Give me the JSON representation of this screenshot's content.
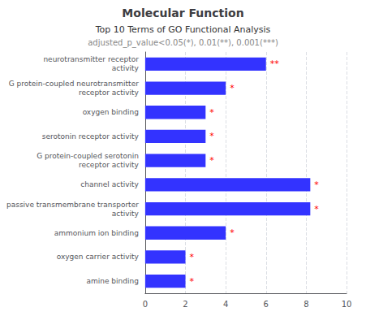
{
  "chart_data": {
    "type": "bar",
    "orientation": "horizontal",
    "title": "Molecular Function",
    "subtitle": [
      "Top 10 Terms of GO Functional Analysis",
      "adjusted_p_value<0.05(*), 0.01(**), 0.001(***)"
    ],
    "categories": [
      "neurotransmitter receptor\nactivity",
      "G protein-coupled neurotransmitter\nreceptor activity",
      "oxygen binding",
      "serotonin receptor activity",
      "G protein-coupled serotonin\nreceptor activity",
      "channel activity",
      "passive transmembrane transporter\nactivity",
      "ammonium ion binding",
      "oxygen carrier activity",
      "amine binding"
    ],
    "values": [
      6.0,
      4.0,
      3.0,
      3.0,
      3.0,
      8.2,
      8.2,
      4.0,
      2.0,
      2.0
    ],
    "color": "#3333ff",
    "annotations": {
      "texts": [
        "**",
        "*",
        "*",
        "*",
        "*",
        "*",
        "*",
        "*",
        "*",
        "*"
      ],
      "color": "#ff0000"
    },
    "xlim": [
      0,
      10
    ],
    "xticks": [
      0,
      2,
      4,
      6,
      8,
      10
    ],
    "grid": true
  }
}
